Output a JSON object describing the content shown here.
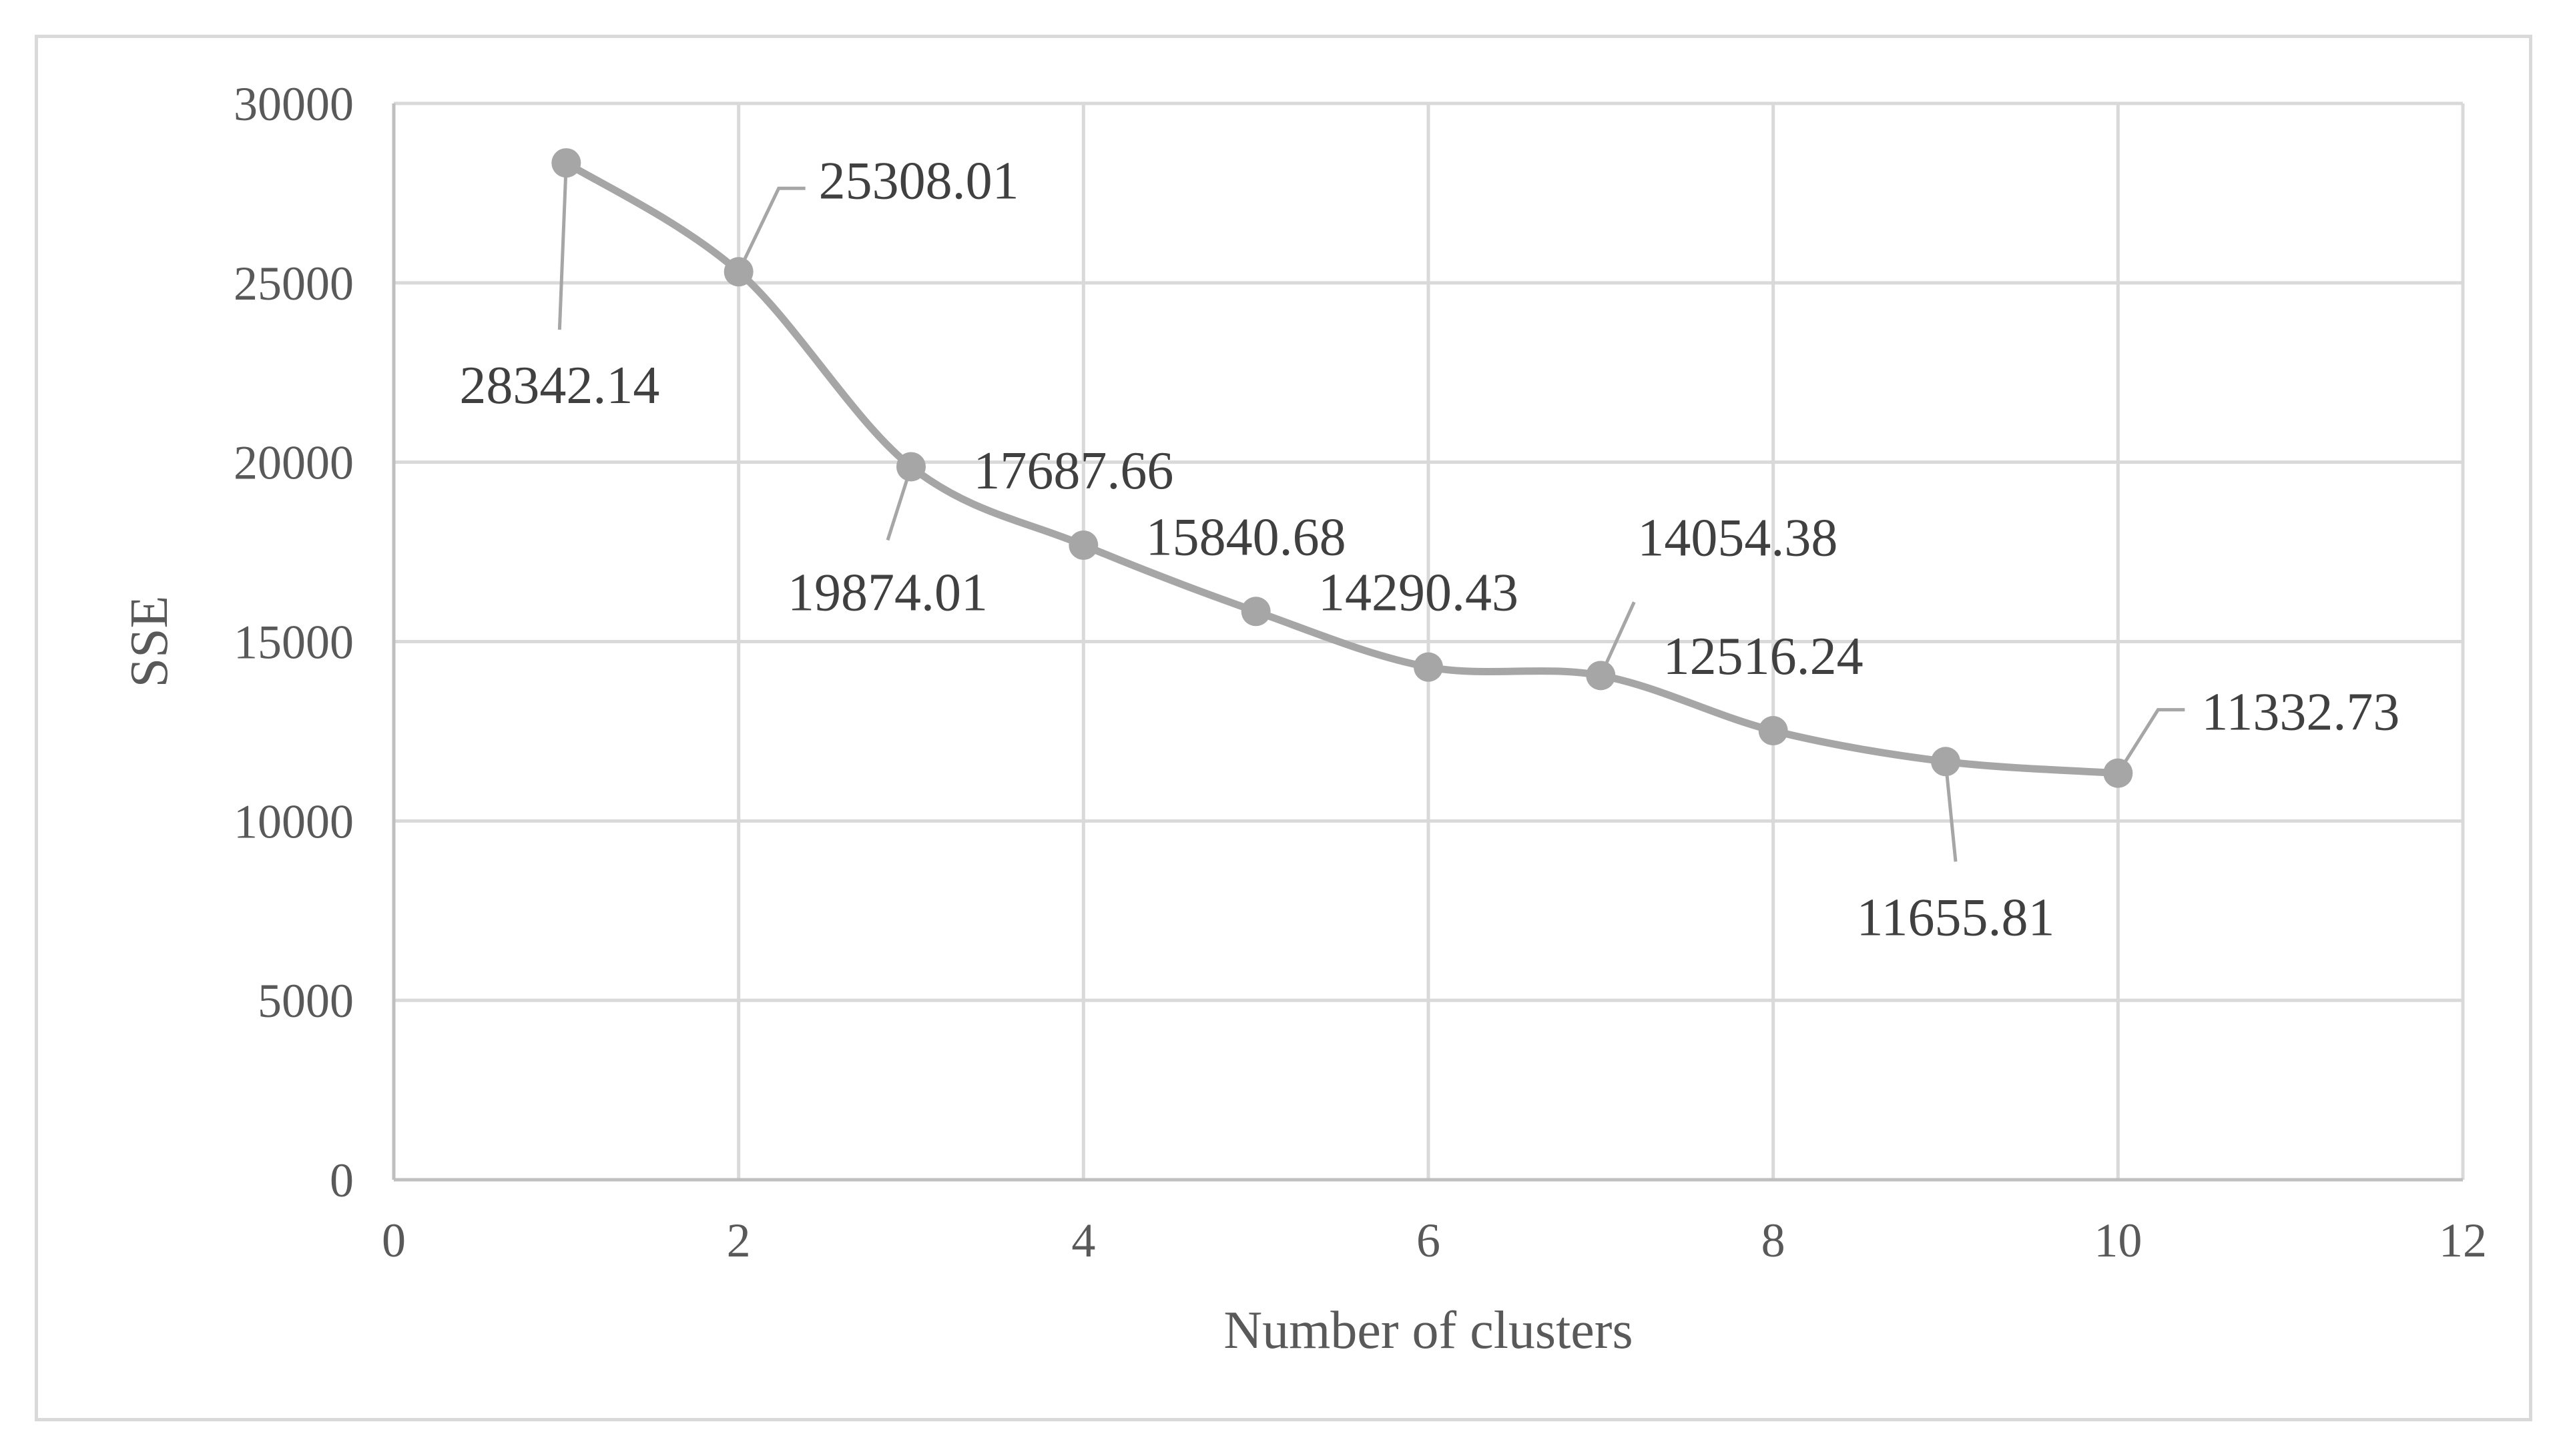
{
  "chart_data": {
    "type": "scatter",
    "title": "",
    "xlabel": "Number of clusters",
    "ylabel": "SSE",
    "xlim": [
      0,
      12
    ],
    "ylim": [
      0,
      30000
    ],
    "x_ticks": [
      0,
      2,
      4,
      6,
      8,
      10,
      12
    ],
    "y_ticks": [
      0,
      5000,
      10000,
      15000,
      20000,
      25000,
      30000
    ],
    "x_tick_labels": [
      "0",
      "2",
      "4",
      "6",
      "8",
      "10",
      "12"
    ],
    "y_tick_labels": [
      "0",
      "5000",
      "10000",
      "15000",
      "20000",
      "25000",
      "30000"
    ],
    "grid": true,
    "legend": "none",
    "smooth_line": true,
    "series": [
      {
        "color": "#a6a6a6",
        "x": [
          1,
          2,
          3,
          4,
          5,
          6,
          7,
          8,
          9,
          10
        ],
        "y": [
          28342.14,
          25308.01,
          19874.01,
          17687.66,
          15840.68,
          14290.43,
          14054.38,
          12516.24,
          11655.81,
          11332.73
        ],
        "labels": [
          "28342.14",
          "25308.01",
          "19874.01",
          "17687.66",
          "15840.68",
          "14290.43",
          "14054.38",
          "12516.24",
          "11655.81",
          "11332.73"
        ]
      }
    ]
  }
}
